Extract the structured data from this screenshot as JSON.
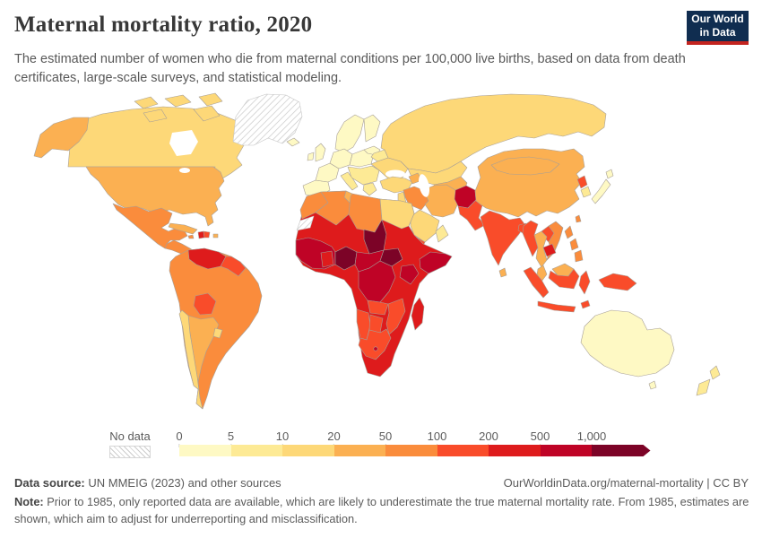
{
  "header": {
    "title": "Maternal mortality ratio, 2020",
    "subtitle": "The estimated number of women who die from maternal conditions per 100,000 live births, based on data from death certificates, large-scale surveys, and statistical modeling.",
    "logo": {
      "line1": "Our World",
      "line2": "in Data",
      "bg": "#102d50",
      "accent": "#c3241f"
    }
  },
  "legend": {
    "no_data_label": "No data",
    "ticks": [
      "0",
      "5",
      "10",
      "20",
      "50",
      "100",
      "200",
      "500",
      "1,000"
    ],
    "bins": [
      {
        "label": "0-5",
        "color": "#fef9c4"
      },
      {
        "label": "5-10",
        "color": "#fdea95"
      },
      {
        "label": "10-20",
        "color": "#fdd878"
      },
      {
        "label": "20-50",
        "color": "#fbb052"
      },
      {
        "label": "50-100",
        "color": "#fa8c3c"
      },
      {
        "label": "100-200",
        "color": "#f94c2a"
      },
      {
        "label": "200-500",
        "color": "#de1b1c"
      },
      {
        "label": "500-1000",
        "color": "#bf0326"
      },
      {
        "label": "1000+",
        "color": "#7c0327"
      }
    ]
  },
  "footer": {
    "source_label": "Data source:",
    "source_text": " UN MMEIG (2023) and other sources",
    "link_text": "OurWorldinData.org/maternal-mortality | CC BY",
    "note_label": "Note:",
    "note_text": " Prior to 1985, only reported data are available, which are likely to underestimate the true maternal mortality rate. From 1985, estimates are shown, which aim to adjust for underreporting and misclassification."
  },
  "chart_data": {
    "type": "choropleth_map",
    "title": "Maternal mortality ratio, 2020",
    "unit": "maternal deaths per 100,000 live births",
    "bin_edges": [
      0,
      5,
      10,
      20,
      50,
      100,
      200,
      500,
      1000
    ],
    "legend_position": "bottom",
    "no_data_style": "diagonal-hatch",
    "regions": [
      {
        "id": "greenland",
        "name": "Greenland",
        "bin": "no-data"
      },
      {
        "id": "western-sahara",
        "name": "Western Sahara",
        "bin": "no-data"
      },
      {
        "id": "canada",
        "name": "Canada",
        "bin": "10-20"
      },
      {
        "id": "arctic-islands",
        "name": "Canadian Arctic islands",
        "bin": "10-20"
      },
      {
        "id": "alaska",
        "name": "Alaska (US)",
        "bin": "20-50"
      },
      {
        "id": "usa",
        "name": "United States",
        "bin": "20-50"
      },
      {
        "id": "mexico",
        "name": "Mexico",
        "bin": "50-100"
      },
      {
        "id": "central-america",
        "name": "Central America",
        "bin": "50-100"
      },
      {
        "id": "cuba",
        "name": "Cuba",
        "bin": "20-50"
      },
      {
        "id": "jamaica",
        "name": "Jamaica",
        "bin": "50-100"
      },
      {
        "id": "haiti",
        "name": "Haiti",
        "bin": "200-500"
      },
      {
        "id": "dominican-republic",
        "name": "Dominican Republic",
        "bin": "100-200"
      },
      {
        "id": "puerto-rico",
        "name": "Puerto Rico",
        "bin": "20-50"
      },
      {
        "id": "south-america-base",
        "name": "Brazil, Colombia, Ecuador, Peru, Paraguay",
        "bin": "50-100"
      },
      {
        "id": "venezuela",
        "name": "Venezuela",
        "bin": "200-500"
      },
      {
        "id": "guyanas",
        "name": "Guyana & Suriname",
        "bin": "100-200"
      },
      {
        "id": "bolivia",
        "name": "Bolivia",
        "bin": "100-200"
      },
      {
        "id": "chile",
        "name": "Chile",
        "bin": "10-20"
      },
      {
        "id": "argentina",
        "name": "Argentina",
        "bin": "20-50"
      },
      {
        "id": "uruguay",
        "name": "Uruguay",
        "bin": "10-20"
      },
      {
        "id": "iceland",
        "name": "Iceland",
        "bin": "0-5"
      },
      {
        "id": "uk",
        "name": "United Kingdom",
        "bin": "0-5"
      },
      {
        "id": "ireland",
        "name": "Ireland",
        "bin": "0-5"
      },
      {
        "id": "iberia",
        "name": "Spain & Portugal",
        "bin": "0-5"
      },
      {
        "id": "france",
        "name": "France",
        "bin": "0-5"
      },
      {
        "id": "germany-central",
        "name": "Germany & Central Europe",
        "bin": "0-5"
      },
      {
        "id": "scandinavia",
        "name": "Norway & Sweden",
        "bin": "0-5"
      },
      {
        "id": "finland",
        "name": "Finland",
        "bin": "0-5"
      },
      {
        "id": "poland",
        "name": "Poland",
        "bin": "0-5"
      },
      {
        "id": "baltics",
        "name": "Baltic states",
        "bin": "0-5"
      },
      {
        "id": "belarus",
        "name": "Belarus",
        "bin": "5-10"
      },
      {
        "id": "italy",
        "name": "Italy",
        "bin": "5-10"
      },
      {
        "id": "eastern-europe",
        "name": "Balkans & Romania",
        "bin": "5-10"
      },
      {
        "id": "greece",
        "name": "Greece",
        "bin": "5-10"
      },
      {
        "id": "ukraine",
        "name": "Ukraine",
        "bin": "10-20"
      },
      {
        "id": "russia",
        "name": "Russia",
        "bin": "10-20"
      },
      {
        "id": "kazakhstan",
        "name": "Kazakhstan",
        "bin": "10-20"
      },
      {
        "id": "central-asia",
        "name": "Central Asia",
        "bin": "20-50"
      },
      {
        "id": "turkey",
        "name": "Turkey",
        "bin": "10-20"
      },
      {
        "id": "caucasus",
        "name": "Caucasus",
        "bin": "20-50"
      },
      {
        "id": "iraq-syria",
        "name": "Iraq & Syria",
        "bin": "50-100"
      },
      {
        "id": "levant",
        "name": "Israel & Jordan",
        "bin": "10-20"
      },
      {
        "id": "saudi-arabia",
        "name": "Saudi Arabia",
        "bin": "10-20"
      },
      {
        "id": "yemen",
        "name": "Yemen",
        "bin": "100-200"
      },
      {
        "id": "oman",
        "name": "Oman",
        "bin": "5-10"
      },
      {
        "id": "iran",
        "name": "Iran",
        "bin": "20-50"
      },
      {
        "id": "afghanistan",
        "name": "Afghanistan",
        "bin": "500-1000"
      },
      {
        "id": "pakistan",
        "name": "Pakistan",
        "bin": "100-200"
      },
      {
        "id": "india",
        "name": "India",
        "bin": "100-200"
      },
      {
        "id": "sri-lanka",
        "name": "Sri Lanka",
        "bin": "20-50"
      },
      {
        "id": "bangladesh",
        "name": "Bangladesh",
        "bin": "100-200"
      },
      {
        "id": "china",
        "name": "China",
        "bin": "20-50"
      },
      {
        "id": "mongolia",
        "name": "Mongolia",
        "bin": "20-50"
      },
      {
        "id": "north-korea",
        "name": "North Korea",
        "bin": "100-200"
      },
      {
        "id": "south-korea",
        "name": "South Korea",
        "bin": "5-10"
      },
      {
        "id": "japan",
        "name": "Japan",
        "bin": "0-5"
      },
      {
        "id": "taiwan",
        "name": "Taiwan",
        "bin": "50-100"
      },
      {
        "id": "myanmar",
        "name": "Myanmar",
        "bin": "100-200"
      },
      {
        "id": "thailand",
        "name": "Thailand",
        "bin": "20-50"
      },
      {
        "id": "laos",
        "name": "Laos",
        "bin": "100-200"
      },
      {
        "id": "vietnam",
        "name": "Vietnam",
        "bin": "50-100"
      },
      {
        "id": "cambodia",
        "name": "Cambodia",
        "bin": "200-500"
      },
      {
        "id": "malay-peninsula",
        "name": "Malaysia (peninsula)",
        "bin": "20-50"
      },
      {
        "id": "sumatra",
        "name": "Indonesia (Sumatra)",
        "bin": "100-200"
      },
      {
        "id": "java",
        "name": "Indonesia (Java)",
        "bin": "100-200"
      },
      {
        "id": "malaysia-borneo",
        "name": "Malaysia (Borneo)",
        "bin": "20-50"
      },
      {
        "id": "kalimantan",
        "name": "Indonesia (Kalimantan)",
        "bin": "100-200"
      },
      {
        "id": "sulawesi",
        "name": "Indonesia (Sulawesi)",
        "bin": "100-200"
      },
      {
        "id": "philippines",
        "name": "Philippines",
        "bin": "50-100"
      },
      {
        "id": "new-guinea",
        "name": "New Guinea",
        "bin": "100-200"
      },
      {
        "id": "timor",
        "name": "Timor",
        "bin": "100-200"
      },
      {
        "id": "australia",
        "name": "Australia",
        "bin": "0-5"
      },
      {
        "id": "tasmania",
        "name": "Tasmania",
        "bin": "0-5"
      },
      {
        "id": "new-zealand",
        "name": "New Zealand",
        "bin": "5-10"
      },
      {
        "id": "africa-base",
        "name": "Sahel, Sudan, Ethiopia, Angola, Tanzania and neighbours",
        "bin": "200-500"
      },
      {
        "id": "morocco",
        "name": "Morocco",
        "bin": "50-100"
      },
      {
        "id": "algeria",
        "name": "Algeria",
        "bin": "50-100"
      },
      {
        "id": "tunisia",
        "name": "Tunisia",
        "bin": "20-50"
      },
      {
        "id": "libya",
        "name": "Libya",
        "bin": "50-100"
      },
      {
        "id": "egypt",
        "name": "Egypt",
        "bin": "10-20"
      },
      {
        "id": "chad",
        "name": "Chad",
        "bin": "1000+"
      },
      {
        "id": "nigeria",
        "name": "Nigeria",
        "bin": "1000+"
      },
      {
        "id": "south-sudan",
        "name": "South Sudan",
        "bin": "1000+"
      },
      {
        "id": "somalia",
        "name": "Somalia",
        "bin": "500-1000"
      },
      {
        "id": "kenya",
        "name": "Kenya",
        "bin": "500-1000"
      },
      {
        "id": "west-africa-coast",
        "name": "Guinea, Sierra Leone, Liberia, Côte d'Ivoire",
        "bin": "500-1000"
      },
      {
        "id": "ghana",
        "name": "Ghana",
        "bin": "200-500"
      },
      {
        "id": "cameroon-car",
        "name": "Cameroon & Central African Republic",
        "bin": "500-1000"
      },
      {
        "id": "drc",
        "name": "Democratic Republic of Congo",
        "bin": "500-1000"
      },
      {
        "id": "zambia",
        "name": "Zambia",
        "bin": "100-200"
      },
      {
        "id": "mozambique",
        "name": "Mozambique",
        "bin": "100-200"
      },
      {
        "id": "namibia",
        "name": "Namibia",
        "bin": "100-200"
      },
      {
        "id": "botswana",
        "name": "Botswana",
        "bin": "100-200"
      },
      {
        "id": "south-africa",
        "name": "South Africa",
        "bin": "100-200"
      },
      {
        "id": "lesotho",
        "name": "Lesotho",
        "bin": "500-1000"
      },
      {
        "id": "madagascar",
        "name": "Madagascar",
        "bin": "200-500"
      }
    ]
  }
}
